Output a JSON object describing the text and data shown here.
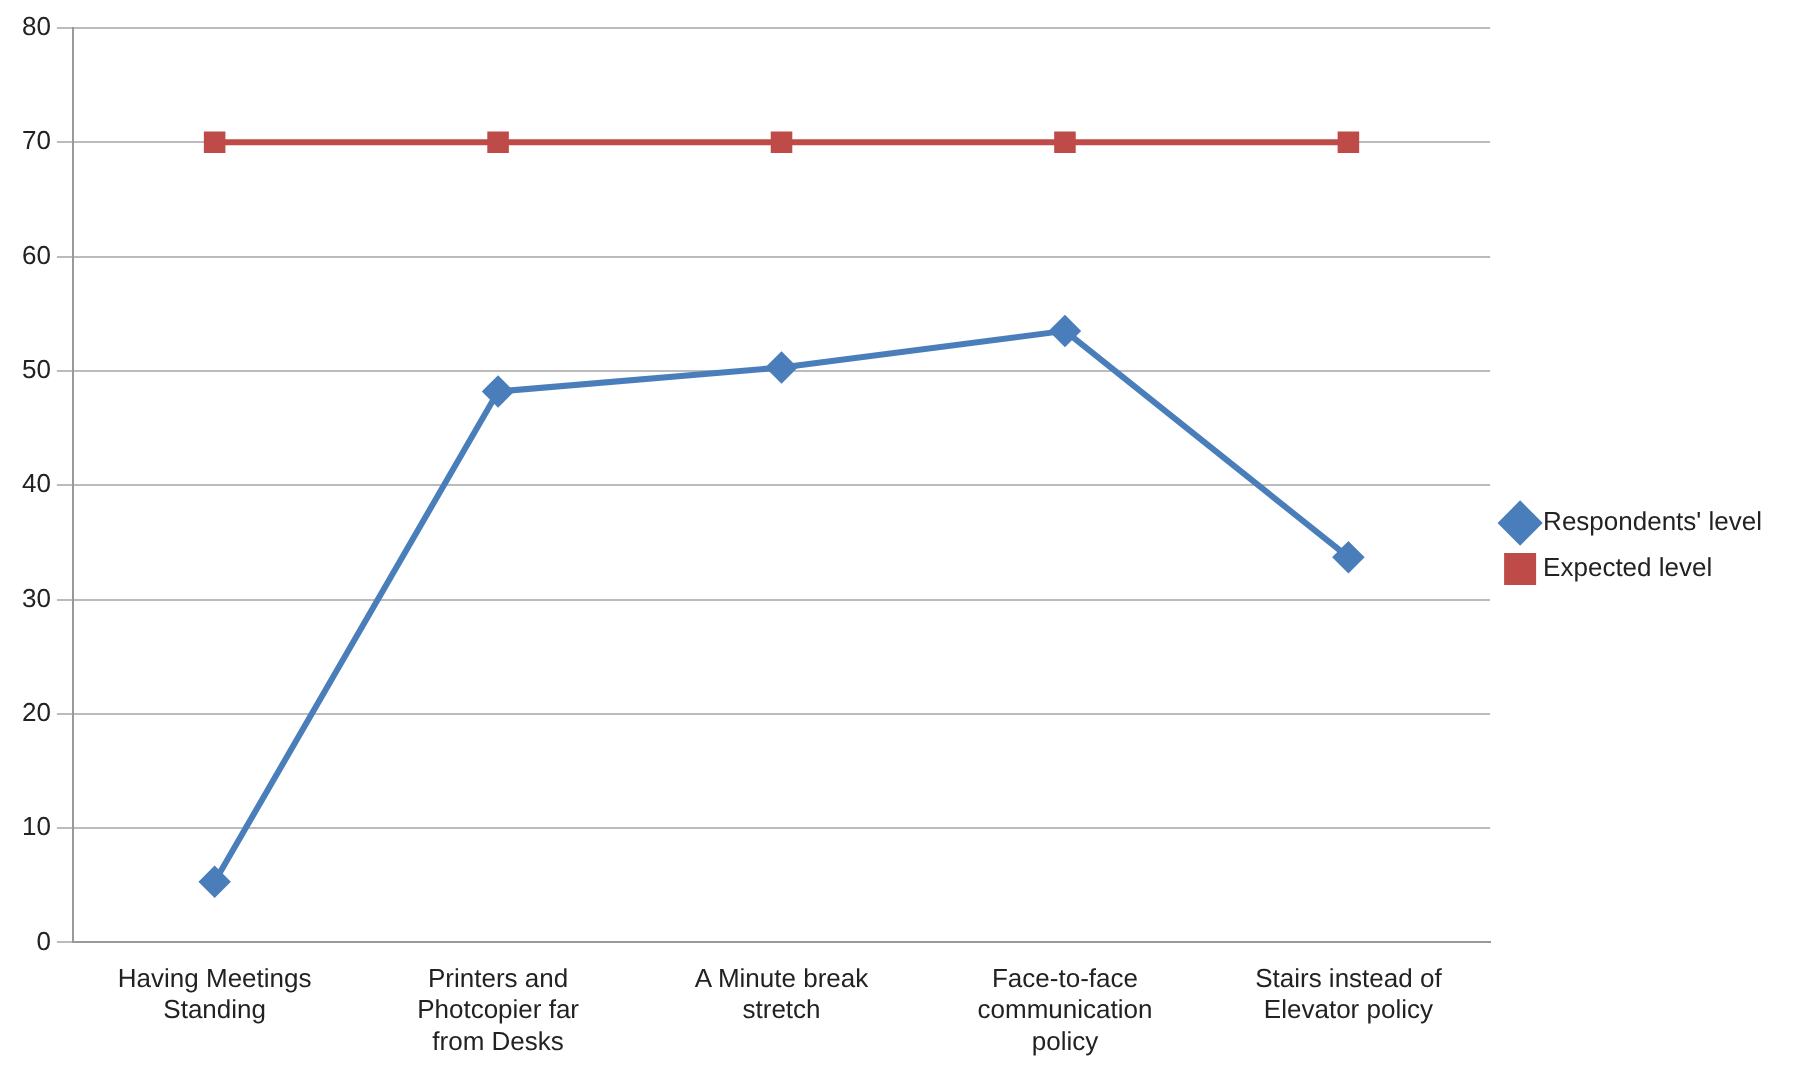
{
  "chart_data": {
    "type": "line",
    "categories": [
      "Having Meetings Standing",
      "Printers and Photcopier far from Desks",
      "A Minute break stretch",
      "Face-to-face communication policy",
      "Stairs instead of Elevator policy"
    ],
    "series": [
      {
        "name": "Respondents' level",
        "color": "#4a7ebb",
        "marker": "diamond",
        "values": [
          5.3,
          48.2,
          50.3,
          53.5,
          33.7
        ]
      },
      {
        "name": "Expected level",
        "color": "#be4b48",
        "marker": "square",
        "values": [
          70,
          70,
          70,
          70,
          70
        ]
      }
    ],
    "ylim": [
      0,
      80
    ],
    "yticks": [
      0,
      10,
      20,
      30,
      40,
      50,
      60,
      70,
      80
    ],
    "grid": "y",
    "legend": "right",
    "line_style": "solid"
  }
}
